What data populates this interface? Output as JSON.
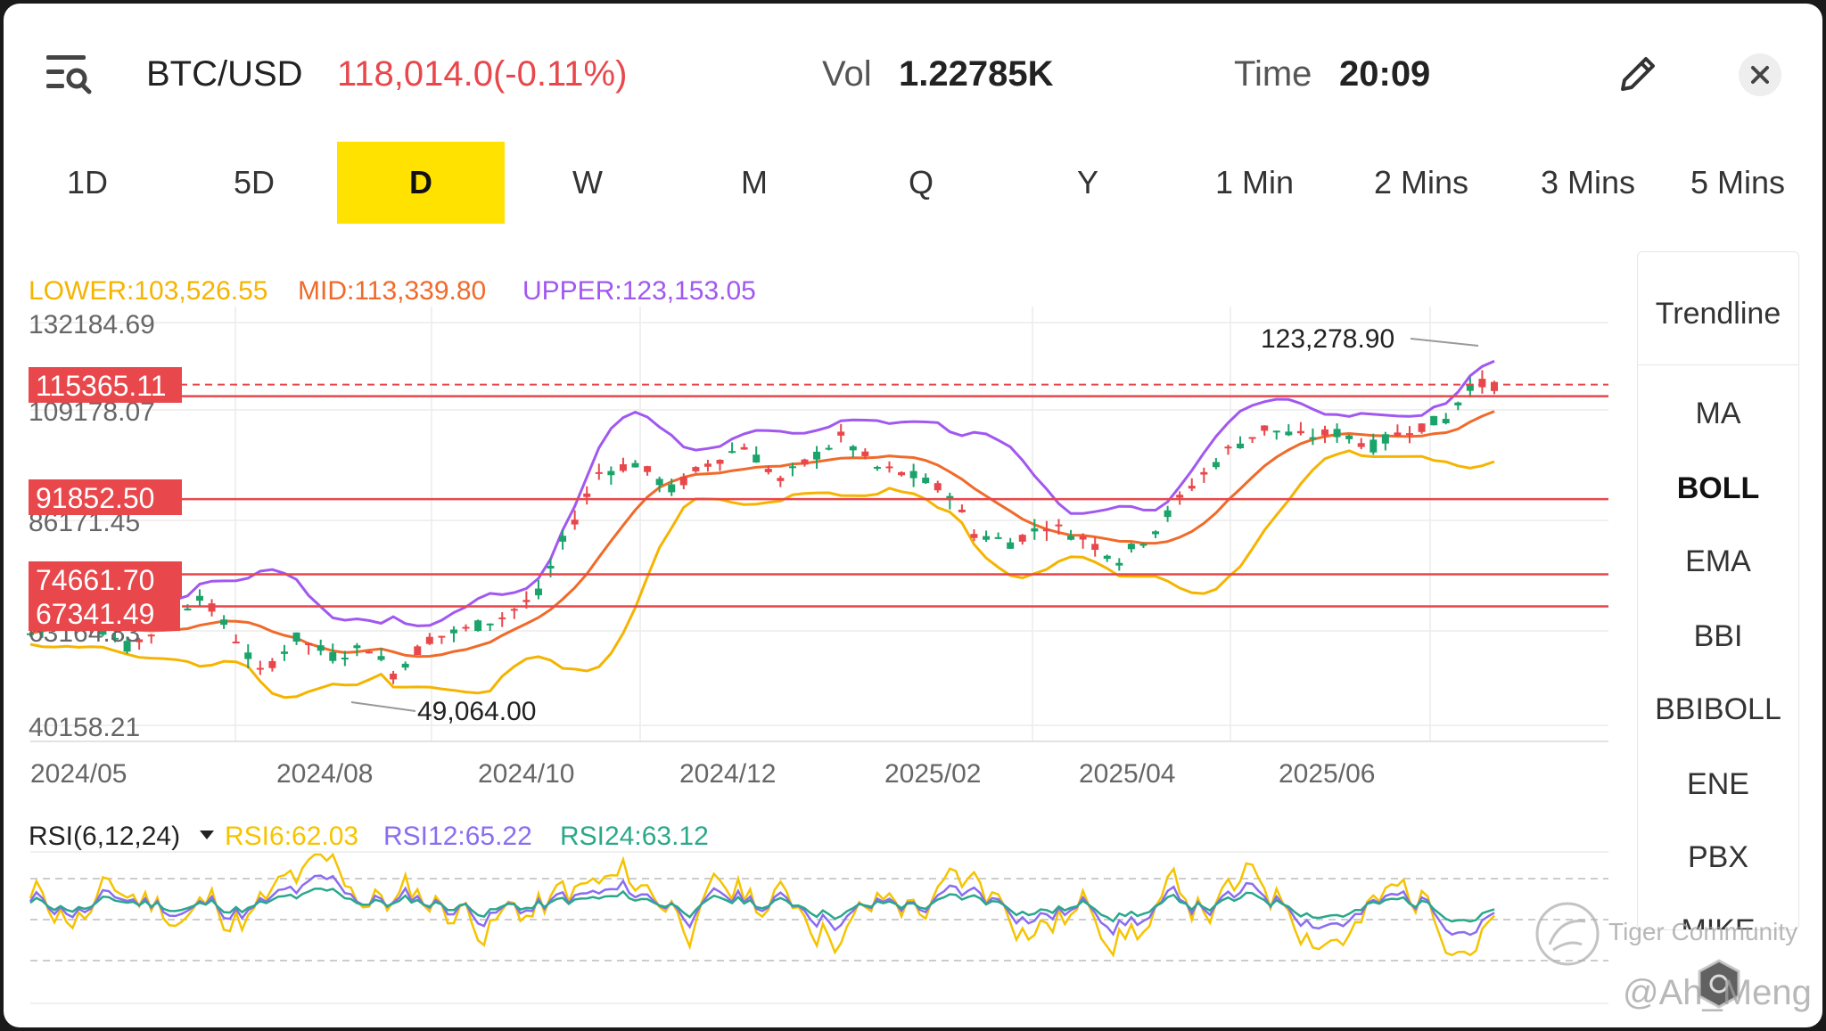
{
  "header": {
    "symbol": "BTC/USD",
    "price_change": "118,014.0(-0.11%)",
    "vol_label": "Vol",
    "vol_value": "1.22785K",
    "time_label": "Time",
    "time_value": "20:09",
    "price_color": "#e8474b"
  },
  "tabs": [
    {
      "label": "1D",
      "active": false
    },
    {
      "label": "5D",
      "active": false
    },
    {
      "label": "D",
      "active": true
    },
    {
      "label": "W",
      "active": false
    },
    {
      "label": "M",
      "active": false
    },
    {
      "label": "Q",
      "active": false
    },
    {
      "label": "Y",
      "active": false
    },
    {
      "label": "1 Min",
      "active": false
    },
    {
      "label": "2 Mins",
      "active": false
    },
    {
      "label": "3 Mins",
      "active": false
    },
    {
      "label": "5 Mins",
      "active": false
    }
  ],
  "indicators": {
    "lower": "LOWER:103,526.55",
    "mid": "MID:113,339.80",
    "upper": "UPPER:123,153.05",
    "colors": {
      "lower": "#f5b400",
      "mid": "#f06a2a",
      "upper": "#a158f0",
      "up": "#1aa36a",
      "down": "#e8474b",
      "line": "#e8474b"
    }
  },
  "axis": {
    "y_ticks": [
      "132184.69",
      "109178.07",
      "86171.45",
      "63164.83",
      "40158.21"
    ],
    "x_ticks": [
      "2024/05",
      "2024/08",
      "2024/10",
      "2024/12",
      "2025/02",
      "2025/04",
      "2025/06"
    ]
  },
  "levels": [
    "115365.11",
    "91852.50",
    "74661.70",
    "67341.49"
  ],
  "annotations": {
    "high": "123,278.90",
    "low": "49,064.00"
  },
  "rsi": {
    "title": "RSI(6,12,24)",
    "rsi6": "RSI6:62.03",
    "rsi12": "RSI12:65.22",
    "rsi24": "RSI24:63.12",
    "colors": {
      "rsi6": "#f5c400",
      "rsi12": "#8a6df0",
      "rsi24": "#2aa88a"
    }
  },
  "side_panel": {
    "trendline": "Trendline",
    "items": [
      {
        "label": "MA",
        "selected": false
      },
      {
        "label": "BOLL",
        "selected": true
      },
      {
        "label": "EMA",
        "selected": false
      },
      {
        "label": "BBI",
        "selected": false
      },
      {
        "label": "BBIBOLL",
        "selected": false
      },
      {
        "label": "ENE",
        "selected": false
      },
      {
        "label": "PBX",
        "selected": false
      },
      {
        "label": "MIKE",
        "selected": false
      }
    ]
  },
  "watermark": {
    "brand": "Tiger Community",
    "user": "@Ah_Meng"
  },
  "chart_data": {
    "type": "candlestick",
    "y_axis_range": [
      40158.21,
      132184.69
    ],
    "x_ticks": [
      "2024/05",
      "2024/08",
      "2024/10",
      "2024/12",
      "2025/02",
      "2025/04",
      "2025/06"
    ],
    "horizontal_levels": [
      115365.11,
      91852.5,
      74661.7,
      67341.49
    ],
    "period_high": 123278.9,
    "period_low": 49064.0,
    "last_price": 118014.0,
    "bollinger": {
      "lower": 103526.55,
      "mid": 113339.8,
      "upper": 123153.05
    },
    "rsi": {
      "rsi6": 62.03,
      "rsi12": 65.22,
      "rsi24": 63.12
    },
    "price_path": [
      [
        0,
        61000
      ],
      [
        4,
        66000
      ],
      [
        8,
        58000
      ],
      [
        11,
        63000
      ],
      [
        14,
        70000
      ],
      [
        17,
        60000
      ],
      [
        19,
        52000
      ],
      [
        22,
        60000
      ],
      [
        25,
        56000
      ],
      [
        28,
        58000
      ],
      [
        30,
        52000
      ],
      [
        33,
        60000
      ],
      [
        36,
        62000
      ],
      [
        39,
        65000
      ],
      [
        42,
        70000
      ],
      [
        44,
        82000
      ],
      [
        47,
        98000
      ],
      [
        50,
        100000
      ],
      [
        53,
        94000
      ],
      [
        56,
        100000
      ],
      [
        59,
        104000
      ],
      [
        62,
        96000
      ],
      [
        64,
        100000
      ],
      [
        67,
        106000
      ],
      [
        70,
        99000
      ],
      [
        73,
        97000
      ],
      [
        76,
        93000
      ],
      [
        78,
        84000
      ],
      [
        81,
        82000
      ],
      [
        84,
        86000
      ],
      [
        87,
        83000
      ],
      [
        90,
        78000
      ],
      [
        93,
        85000
      ],
      [
        96,
        95000
      ],
      [
        99,
        103000
      ],
      [
        102,
        108000
      ],
      [
        105,
        106000
      ],
      [
        108,
        107000
      ],
      [
        111,
        104000
      ],
      [
        114,
        108000
      ],
      [
        117,
        110000
      ],
      [
        119,
        118000
      ],
      [
        121,
        118000
      ]
    ]
  }
}
